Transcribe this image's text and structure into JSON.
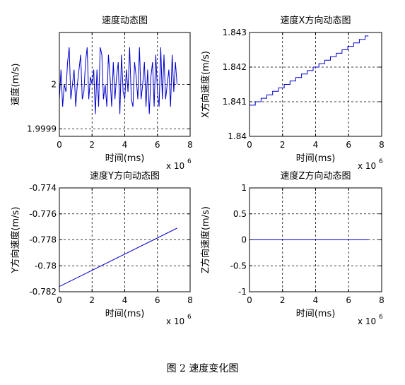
{
  "caption": "图 2  速度变化图",
  "chart_data": [
    {
      "type": "line",
      "title": "速度动态图",
      "xlabel": "时间(ms)",
      "ylabel": "速度(m/s)",
      "x_multiplier": "x 10",
      "x_exponent": "6",
      "xlim": [
        0,
        8
      ],
      "ylim": [
        1.99993,
        2.00007
      ],
      "xticks": [
        0,
        2,
        4,
        6,
        8
      ],
      "xtick_labels": [
        "0",
        "2",
        "4",
        "6",
        "8"
      ],
      "yticks": [
        1.99994,
        2.0
      ],
      "ytick_labels": [
        "1.9999",
        "2"
      ],
      "grid": true,
      "color": "#0000cc",
      "series": [
        {
          "x": [
            0,
            0.1,
            0.2,
            0.3,
            0.4,
            0.5,
            0.6,
            0.7,
            0.8,
            0.9,
            1.0,
            1.1,
            1.2,
            1.3,
            1.4,
            1.5,
            1.6,
            1.7,
            1.8,
            1.9,
            2.0,
            2.1,
            2.2,
            2.3,
            2.4,
            2.5,
            2.6,
            2.7,
            2.8,
            2.9,
            3.0,
            3.1,
            3.2,
            3.3,
            3.4,
            3.5,
            3.6,
            3.7,
            3.8,
            3.9,
            4.0,
            4.1,
            4.2,
            4.3,
            4.4,
            4.5,
            4.6,
            4.7,
            4.8,
            4.9,
            5.0,
            5.1,
            5.2,
            5.3,
            5.4,
            5.5,
            5.6,
            5.7,
            5.8,
            5.9,
            6.0,
            6.1,
            6.2,
            6.3,
            6.4,
            6.5,
            6.6,
            6.7,
            6.8,
            6.9,
            7.0,
            7.1,
            7.2
          ],
          "y": [
            1.99998,
            2.00002,
            1.99997,
            2.0,
            1.99999,
            2.00003,
            2.00005,
            1.99998,
            2.0,
            2.00002,
            1.99997,
            2.0,
            2.00002,
            2.00004,
            1.99998,
            1.99999,
            2.00003,
            2.00005,
            1.99998,
            2.00001,
            2.0,
            2.00002,
            1.99996,
            2.00002,
            1.99997,
            2.00005,
            2.00004,
            1.99998,
            2.0,
            1.99997,
            2.00004,
            2.00001,
            1.99997,
            2.00003,
            1.99998,
            2.00001,
            2.00003,
            1.99996,
            2.00004,
            1.99999,
            1.99998,
            2.00002,
            1.99999,
            2.00005,
            1.99998,
            1.99997,
            2.00003,
            2.00001,
            1.99998,
            2.00005,
            1.99998,
            2.0,
            2.00003,
            1.99997,
            2.00002,
            1.99996,
            2.00001,
            2.00003,
            1.99997,
            2.00004,
            1.99999,
            1.99997,
            2.00005,
            1.99998,
            2.00004,
            1.99998,
            2.0,
            2.00002,
            1.99997,
            2.00004,
            1.99999,
            2.00003,
            2.0
          ]
        }
      ]
    },
    {
      "type": "line",
      "title": "速度X方向动态图",
      "xlabel": "时间(ms)",
      "ylabel": "X方向速度(m/s)",
      "x_multiplier": "x 10",
      "x_exponent": "6",
      "xlim": [
        0,
        8
      ],
      "ylim": [
        1.84,
        1.843
      ],
      "xticks": [
        0,
        2,
        4,
        6,
        8
      ],
      "xtick_labels": [
        "0",
        "2",
        "4",
        "6",
        "8"
      ],
      "yticks": [
        1.84,
        1.841,
        1.842,
        1.843
      ],
      "ytick_labels": [
        "1.84",
        "1.841",
        "1.842",
        "1.843"
      ],
      "grid": true,
      "color": "#0000cc",
      "series": [
        {
          "x": [
            0,
            7.2
          ],
          "y": [
            1.8409,
            1.8429
          ],
          "step": 0.35
        }
      ]
    },
    {
      "type": "line",
      "title": "速度Y方向动态图",
      "xlabel": "时间(ms)",
      "ylabel": "Y方向速度(m/s)",
      "x_multiplier": "x 10",
      "x_exponent": "6",
      "xlim": [
        0,
        8
      ],
      "ylim": [
        -0.782,
        -0.774
      ],
      "xticks": [
        0,
        2,
        4,
        6,
        8
      ],
      "xtick_labels": [
        "0",
        "2",
        "4",
        "6",
        "8"
      ],
      "yticks": [
        -0.782,
        -0.78,
        -0.778,
        -0.776,
        -0.774
      ],
      "ytick_labels": [
        "-0.782",
        "-0.78",
        "-0.778",
        "-0.776",
        "-0.774"
      ],
      "grid": true,
      "color": "#0000cc",
      "series": [
        {
          "x": [
            0,
            7.2
          ],
          "y": [
            -0.7816,
            -0.7771
          ]
        }
      ]
    },
    {
      "type": "line",
      "title": "速度Z方向动态图",
      "xlabel": "时间(ms)",
      "ylabel": "Z方向速度(m/s)",
      "x_multiplier": "x 10",
      "x_exponent": "6",
      "xlim": [
        0,
        8
      ],
      "ylim": [
        -1,
        1
      ],
      "xticks": [
        0,
        2,
        4,
        6,
        8
      ],
      "xtick_labels": [
        "0",
        "2",
        "4",
        "6",
        "8"
      ],
      "yticks": [
        -1,
        -0.5,
        0,
        0.5,
        1
      ],
      "ytick_labels": [
        "-1",
        "-0.5",
        "0",
        "0.5",
        "1"
      ],
      "grid": true,
      "color": "#0000cc",
      "series": [
        {
          "x": [
            0,
            7.2
          ],
          "y": [
            0,
            0
          ]
        }
      ]
    }
  ]
}
